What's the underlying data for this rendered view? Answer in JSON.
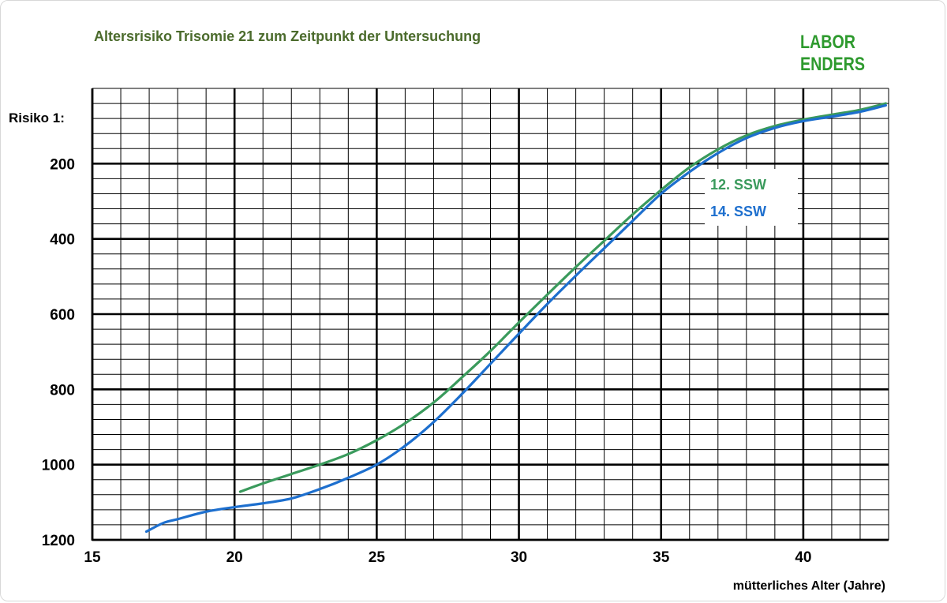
{
  "header": {
    "title": "Altersrisiko Trisomie 21 zum Zeitpunkt der Untersuchung",
    "brand": "LABOR ENDERS"
  },
  "chart_data": {
    "type": "line",
    "title": "Altersrisiko Trisomie 21 zum Zeitpunkt der Untersuchung",
    "xlabel": "mütterliches Alter (Jahre)",
    "ylabel": "Risiko 1:",
    "xlim": [
      15,
      43
    ],
    "ylim": [
      1200,
      0
    ],
    "y_inverted": true,
    "x_ticks": [
      "15",
      "20",
      "25",
      "30",
      "35",
      "40"
    ],
    "y_ticks": [
      "200",
      "400",
      "600",
      "800",
      "1000",
      "1200"
    ],
    "grid": true,
    "legend_position": "top-right",
    "series": [
      {
        "name": "12. SSW",
        "color": "#3a9a5c",
        "x": [
          20.2,
          21,
          22,
          23,
          24,
          25,
          26,
          27,
          28,
          29,
          30,
          31,
          32,
          33,
          34,
          35,
          36,
          37,
          38,
          39,
          40,
          41,
          42,
          42.9
        ],
        "y": [
          1072,
          1050,
          1025,
          1000,
          972,
          935,
          890,
          835,
          768,
          698,
          622,
          548,
          475,
          405,
          335,
          270,
          210,
          162,
          125,
          100,
          83,
          70,
          57,
          40
        ]
      },
      {
        "name": "14. SSW",
        "color": "#1d6fce",
        "x": [
          16.9,
          17.5,
          18,
          19,
          20,
          21,
          22,
          23,
          24,
          25,
          26,
          27,
          28,
          29,
          30,
          31,
          32,
          33,
          34,
          35,
          36,
          37,
          38,
          39,
          40,
          41,
          42,
          42.9
        ],
        "y": [
          1178,
          1155,
          1145,
          1125,
          1113,
          1103,
          1090,
          1065,
          1035,
          1000,
          950,
          887,
          812,
          732,
          652,
          573,
          498,
          425,
          352,
          280,
          222,
          172,
          132,
          105,
          87,
          75,
          62,
          45
        ]
      }
    ]
  }
}
